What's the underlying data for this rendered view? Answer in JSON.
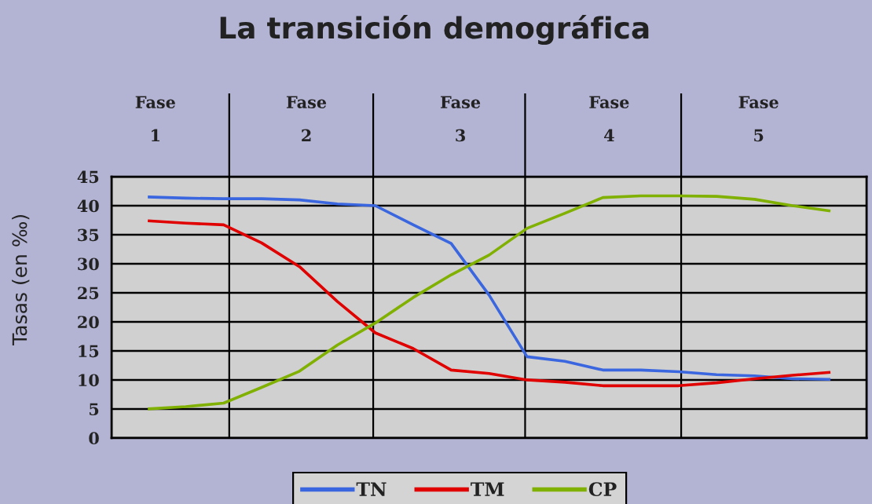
{
  "chart_data": {
    "type": "line",
    "title": "La transición demográfica",
    "ylabel": "Tasas (en ‰)",
    "categories": [
      null,
      null,
      null,
      null,
      null,
      null,
      null,
      null,
      null,
      null,
      null,
      null,
      null,
      null,
      null,
      null,
      null,
      null,
      null
    ],
    "series": [
      {
        "name": "TN",
        "color": "#3a66e0",
        "values": [
          41.5,
          41.3,
          41.2,
          41.2,
          41.0,
          40.3,
          40.0,
          36.7,
          33.5,
          24.6,
          14.0,
          13.2,
          11.7,
          11.7,
          11.4,
          10.9,
          10.7,
          10.2,
          10.1
        ]
      },
      {
        "name": "TM",
        "color": "#e00000",
        "values": [
          37.4,
          37.0,
          36.7,
          33.6,
          29.5,
          23.5,
          18.1,
          15.4,
          11.7,
          11.1,
          10.0,
          9.6,
          9.0,
          9.0,
          9.0,
          9.5,
          10.2,
          10.8,
          11.3
        ]
      },
      {
        "name": "CP",
        "color": "#80b000",
        "values": [
          5.0,
          5.4,
          6.0,
          8.7,
          11.5,
          16.0,
          19.8,
          24.2,
          28.1,
          31.5,
          36.1,
          38.7,
          41.4,
          41.7,
          41.7,
          41.6,
          41.1,
          40.0,
          39.1
        ]
      }
    ],
    "ylim": [
      0,
      45
    ],
    "yticks": [
      0,
      5,
      10,
      15,
      20,
      25,
      30,
      35,
      40,
      45
    ],
    "grid": true,
    "legend": "bottom",
    "tick_labels": "y",
    "annotations": [
      "Fase\n1",
      "Fase\n2",
      "Fase\n3",
      "Fase\n4",
      "Fase\n5"
    ]
  }
}
